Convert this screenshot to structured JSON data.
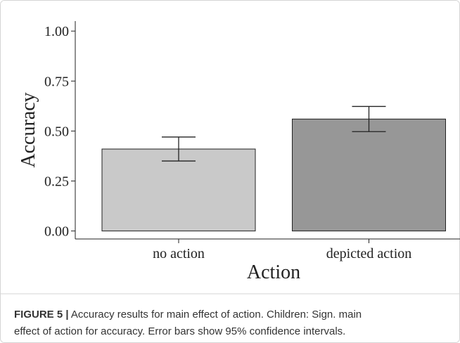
{
  "chart_data": {
    "type": "bar",
    "x_label": "Action",
    "y_label": "Accuracy",
    "categories": [
      "no action",
      "depicted action"
    ],
    "values": [
      0.41,
      0.56
    ],
    "errors": [
      0.06,
      0.063
    ],
    "colors": [
      "#c9c9c9",
      "#979797"
    ],
    "ylim": [
      -0.04,
      1.05
    ],
    "yticks": [
      {
        "value": 0,
        "label": "0.00"
      },
      {
        "value": 0.25,
        "label": "0.25"
      },
      {
        "value": 0.5,
        "label": "0.50"
      },
      {
        "value": 0.75,
        "label": "0.75"
      },
      {
        "value": 1,
        "label": "1.00"
      }
    ],
    "grid": false
  },
  "caption": {
    "label": "FIGURE 5 |",
    "line1": " Accuracy results for main effect of action. Children: Sign. main",
    "line2": "effect of action for accuracy. Error bars show 95% confidence intervals."
  }
}
